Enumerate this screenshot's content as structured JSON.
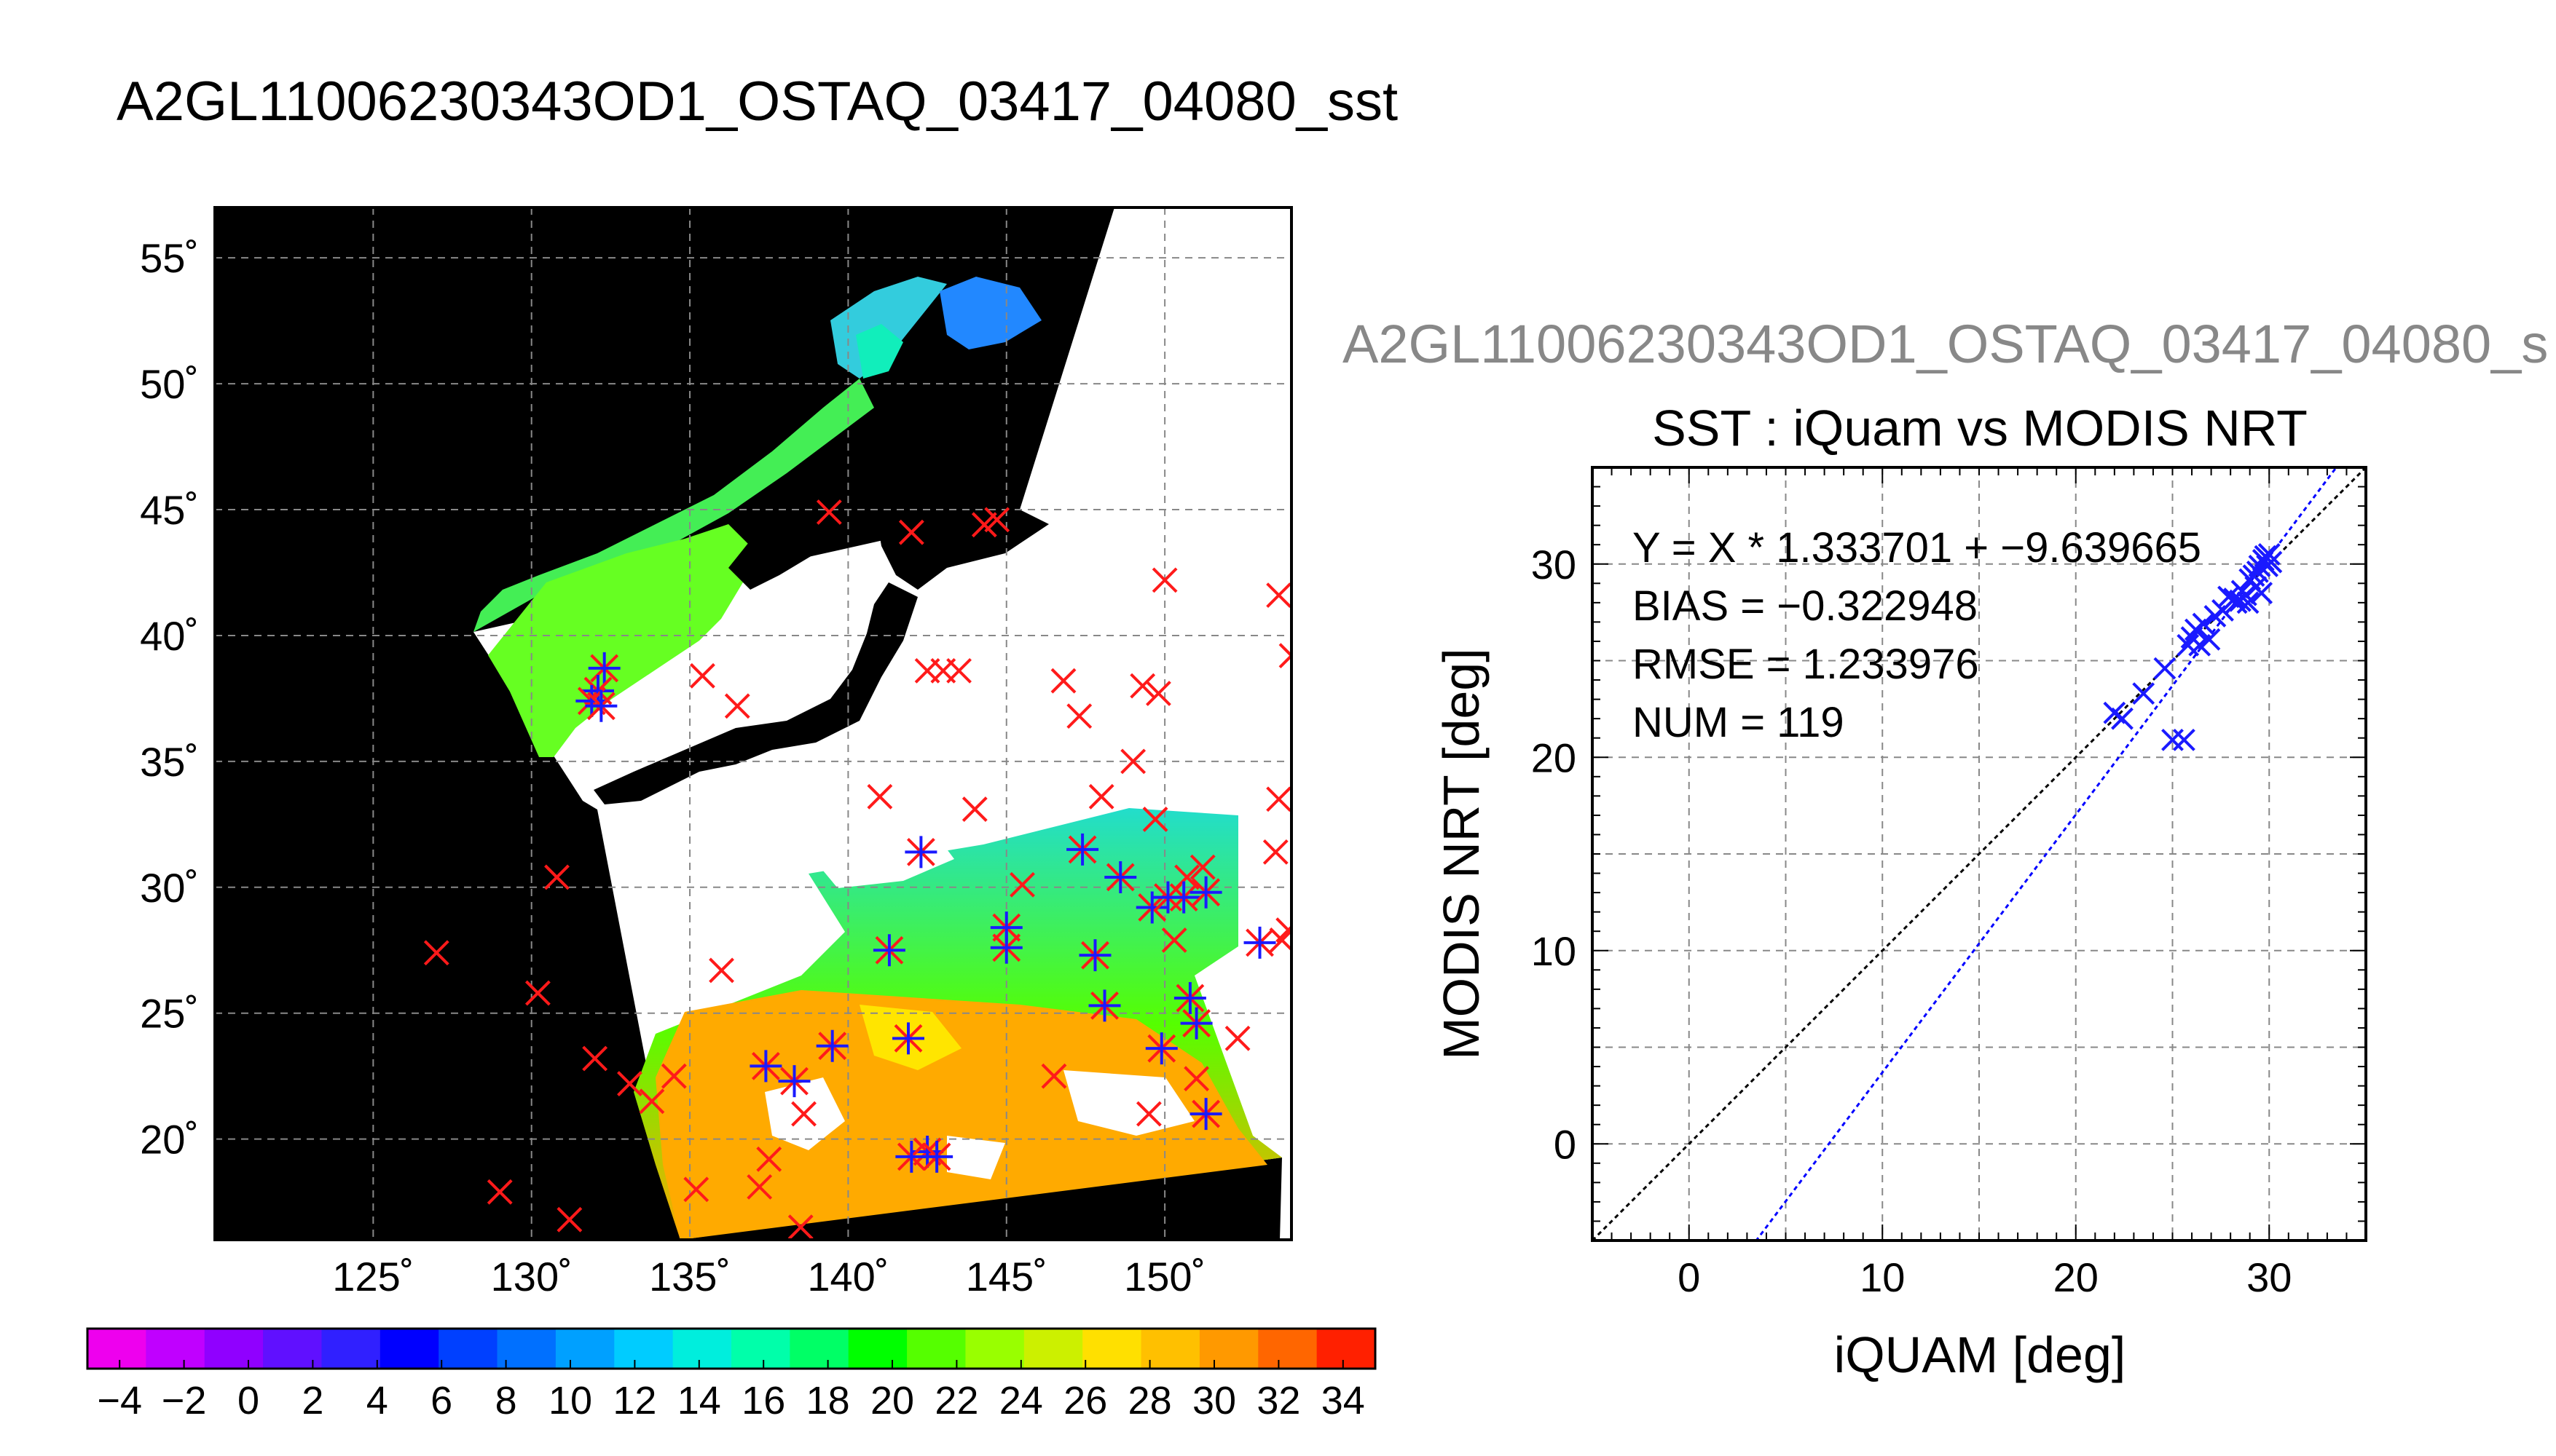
{
  "figure": {
    "main_title": "A2GL11006230343OD1_OSTAQ_03417_04080_sst",
    "secondary_title": "A2GL11006230343OD1_OSTAQ_03417_04080_s",
    "colors": {
      "match_marker": "#1a1aff",
      "unmatched_marker": "#ff1a1a",
      "fit_line": "#0000ff",
      "identity_line": "#000000",
      "land": "#000000",
      "cloud": "#ffffff"
    }
  },
  "chart_data": [
    {
      "type": "heatmap",
      "name": "sst-map",
      "title": "",
      "x_tick_labels": [
        "125˚",
        "130˚",
        "135˚",
        "140˚",
        "145˚",
        "150˚"
      ],
      "x_ticks": [
        125,
        130,
        135,
        140,
        145,
        150
      ],
      "y_tick_labels": [
        "55˚",
        "50˚",
        "45˚",
        "40˚",
        "35˚",
        "30˚",
        "25˚",
        "20˚"
      ],
      "y_ticks": [
        55,
        50,
        45,
        40,
        35,
        30,
        25,
        20
      ],
      "xlim": [
        120,
        154
      ],
      "ylim": [
        16,
        57
      ],
      "grid": true,
      "colorbar": {
        "tick_labels": [
          "−4",
          "−2",
          "0",
          "2",
          "4",
          "6",
          "8",
          "10",
          "12",
          "14",
          "16",
          "18",
          "20",
          "22",
          "24",
          "26",
          "28",
          "30",
          "32",
          "34"
        ],
        "range": [
          -5,
          35
        ],
        "colors": [
          "#ee00ee",
          "#c000ff",
          "#9000ff",
          "#6010ff",
          "#3020ff",
          "#0000ff",
          "#0040ff",
          "#0070ff",
          "#00a0ff",
          "#00ccff",
          "#00eedd",
          "#00ffaa",
          "#00ff66",
          "#00ff00",
          "#55ff00",
          "#99ff00",
          "#ccf000",
          "#ffe000",
          "#ffc000",
          "#ff9900",
          "#ff6600",
          "#ff2000"
        ]
      },
      "unmatched_points": [
        [
          127,
          27.4
        ],
        [
          130.8,
          30.4
        ],
        [
          130.2,
          25.8
        ],
        [
          132,
          23.2
        ],
        [
          133.1,
          22.2
        ],
        [
          133.8,
          21.5
        ],
        [
          134.5,
          22.5
        ],
        [
          135.2,
          18
        ],
        [
          129,
          17.9
        ],
        [
          131.2,
          16.8
        ],
        [
          136,
          26.7
        ],
        [
          137.5,
          19.2
        ],
        [
          137.2,
          18.1
        ],
        [
          138.5,
          16.5
        ],
        [
          138.6,
          21
        ],
        [
          135.4,
          38.4
        ],
        [
          136.5,
          37.2
        ],
        [
          141,
          33.6
        ],
        [
          144,
          33.1
        ],
        [
          145.5,
          30.1
        ],
        [
          146.5,
          22.5
        ],
        [
          146.8,
          38.2
        ],
        [
          147.3,
          36.8
        ],
        [
          148,
          33.6
        ],
        [
          149,
          35
        ],
        [
          149.3,
          38
        ],
        [
          149.8,
          37.7
        ],
        [
          149.7,
          32.7
        ],
        [
          150,
          42.2
        ],
        [
          143,
          38.6
        ],
        [
          142.5,
          38.6
        ],
        [
          143.5,
          38.6
        ],
        [
          144.7,
          44.6
        ],
        [
          144.3,
          44.4
        ],
        [
          142,
          44.1
        ],
        [
          150.3,
          27.9
        ],
        [
          149.5,
          21
        ],
        [
          151,
          22.4
        ],
        [
          152.3,
          24
        ],
        [
          153.5,
          31.4
        ],
        [
          153.6,
          33.5
        ],
        [
          153.6,
          41.6
        ],
        [
          154,
          39.2
        ],
        [
          153.9,
          28.3
        ],
        [
          153.7,
          27.9
        ],
        [
          150.7,
          30.4
        ],
        [
          151.2,
          30.8
        ],
        [
          139.4,
          44.9
        ]
      ],
      "matched_points": [
        [
          132.3,
          38.7
        ],
        [
          132.1,
          37.8
        ],
        [
          131.9,
          37.4
        ],
        [
          132.2,
          37.2
        ],
        [
          137.4,
          22.9
        ],
        [
          138.3,
          22.3
        ],
        [
          139.5,
          23.7
        ],
        [
          141.3,
          27.5
        ],
        [
          141.9,
          24
        ],
        [
          142.3,
          31.4
        ],
        [
          142.5,
          19.5
        ],
        [
          142,
          19.3
        ],
        [
          142.8,
          19.3
        ],
        [
          145,
          27.6
        ],
        [
          145,
          28.4
        ],
        [
          147.4,
          31.5
        ],
        [
          147.8,
          27.3
        ],
        [
          148.1,
          25.3
        ],
        [
          148.6,
          30.4
        ],
        [
          149.6,
          29.2
        ],
        [
          150.1,
          29.6
        ],
        [
          150.6,
          29.6
        ],
        [
          151.3,
          29.8
        ],
        [
          149.9,
          23.6
        ],
        [
          150.8,
          25.6
        ],
        [
          151,
          24.6
        ],
        [
          151.3,
          21
        ],
        [
          153,
          27.8
        ]
      ]
    },
    {
      "type": "scatter",
      "name": "iquam-vs-modis",
      "title": "SST : iQuam vs MODIS NRT",
      "xlabel": "iQUAM [deg]",
      "ylabel": "MODIS NRT [deg]",
      "xlim": [
        -5,
        35
      ],
      "ylim": [
        -5,
        35
      ],
      "x_ticks": [
        0,
        10,
        20,
        30
      ],
      "y_ticks": [
        0,
        10,
        20,
        30
      ],
      "grid": true,
      "annotations": [
        "Y = X * 1.333701 + −9.639665",
        "BIAS = −0.322948",
        "RMSE = 1.233976",
        "NUM = 119"
      ],
      "fit": {
        "slope": 1.333701,
        "intercept": -9.639665
      },
      "points": [
        [
          22,
          22.3
        ],
        [
          22.4,
          22
        ],
        [
          23.5,
          23.3
        ],
        [
          24.6,
          24.6
        ],
        [
          25,
          20.9
        ],
        [
          25.6,
          20.9
        ],
        [
          25.8,
          25.8
        ],
        [
          26,
          26.2
        ],
        [
          26.2,
          26.6
        ],
        [
          26.4,
          25.8
        ],
        [
          26.6,
          26.9
        ],
        [
          26.9,
          26.1
        ],
        [
          27.2,
          27.3
        ],
        [
          27.6,
          27.6
        ],
        [
          27.9,
          28.3
        ],
        [
          28.2,
          28.2
        ],
        [
          28.3,
          28
        ],
        [
          28.6,
          28.6
        ],
        [
          28.8,
          28.4
        ],
        [
          28.9,
          28
        ],
        [
          29,
          29.2
        ],
        [
          29.2,
          29.4
        ],
        [
          29.4,
          29.6
        ],
        [
          29.5,
          29.9
        ],
        [
          29.6,
          28.5
        ],
        [
          29.7,
          30.2
        ],
        [
          29.8,
          30.4
        ],
        [
          29.9,
          29.9
        ],
        [
          30,
          30.5
        ],
        [
          30.1,
          30.1
        ],
        [
          29.3,
          28.8
        ],
        [
          28.5,
          28.1
        ]
      ]
    }
  ]
}
